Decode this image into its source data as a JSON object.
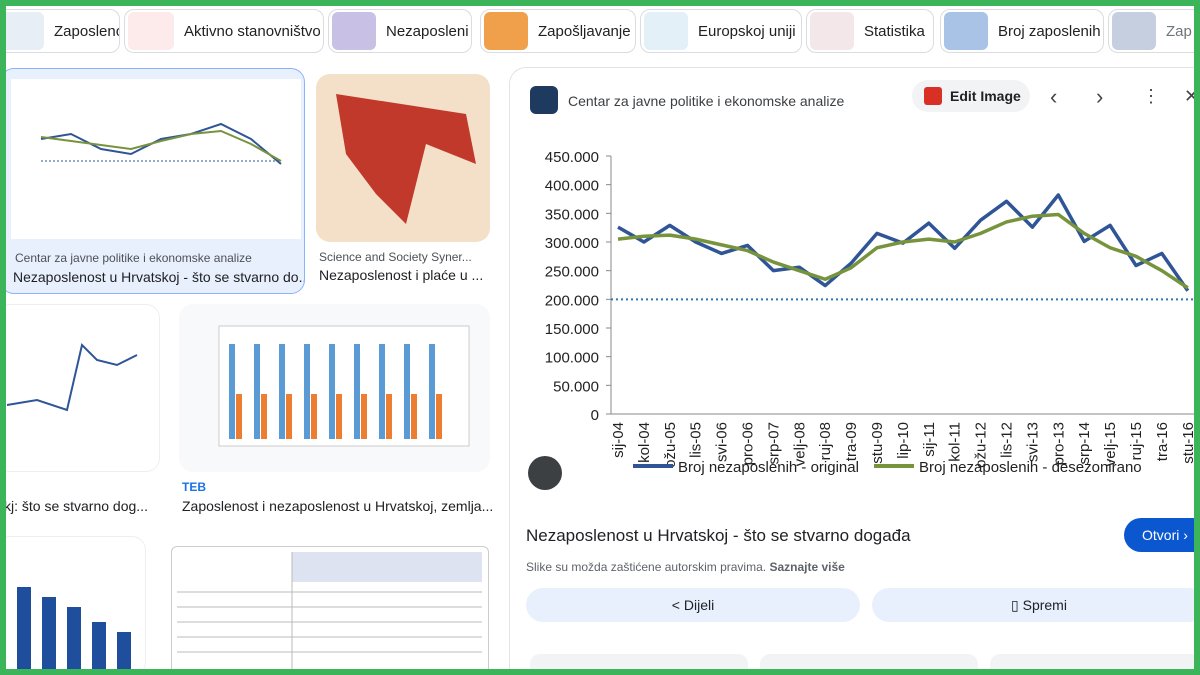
{
  "chips": [
    "Zaposlenost",
    "Aktivno stanovništvo",
    "Nezaposleni",
    "Zapošljavanje",
    "Europskoj uniji",
    "Statistika",
    "Broj zaposlenih",
    "Zap"
  ],
  "results": [
    {
      "source": "Centar za javne politike i ekonomske analize",
      "title": "Nezaposlenost u Hrvatskoj - što se stvarno do..."
    },
    {
      "source": "Science and Society Syner...",
      "title": "Nezaposlenost i plaće u ..."
    },
    {
      "title": "kj: što se stvarno dog..."
    },
    {
      "source": "TEB",
      "title": "Zaposlenost i nezaposlenost u Hrvatskoj, zemlja..."
    }
  ],
  "preview": {
    "source": "Centar za javne politike i ekonomske analize",
    "edit_button": "Edit Image",
    "title": "Nezaposlenost u Hrvatskoj - što se stvarno događa",
    "open_button": "Otvori",
    "copyright_note": "Slike su možda zaštićene autorskim pravima.",
    "learn_more": "Saznajte više",
    "share_button": "Dijeli",
    "save_button": "Spremi"
  },
  "chart_data": {
    "type": "line",
    "categories": [
      "sij-04",
      "kol-04",
      "ožu-05",
      "lis-05",
      "svi-06",
      "pro-06",
      "srp-07",
      "velj-08",
      "ruj-08",
      "tra-09",
      "stu-09",
      "lip-10",
      "sij-11",
      "kol-11",
      "ožu-12",
      "lis-12",
      "svi-13",
      "pro-13",
      "srp-14",
      "velj-15",
      "ruj-15",
      "tra-16",
      "stu-16"
    ],
    "series": [
      {
        "name": "Broj nezaposlenih - original",
        "color": "#2f5597",
        "values": [
          326000,
          300000,
          329000,
          300000,
          280000,
          294000,
          250000,
          256000,
          224000,
          263000,
          315000,
          298000,
          333000,
          289000,
          338000,
          371000,
          326000,
          382000,
          301000,
          329000,
          259000,
          280000,
          215000
        ]
      },
      {
        "name": "Broj nezaposlenih - desezonirano",
        "color": "#77933c",
        "values": [
          305000,
          310000,
          312000,
          305000,
          295000,
          285000,
          265000,
          250000,
          235000,
          255000,
          290000,
          300000,
          305000,
          300000,
          315000,
          335000,
          345000,
          348000,
          315000,
          290000,
          275000,
          250000,
          220000
        ]
      }
    ],
    "reference_line": 200000,
    "ylim": [
      0,
      450000
    ],
    "yticks": [
      0,
      {
        "value": 50000,
        "label": "50.000"
      },
      {
        "value": 100000,
        "label": "100.000"
      },
      {
        "value": 150000,
        "label": "150.000"
      },
      {
        "value": 200000,
        "label": "200.000"
      },
      {
        "value": 250000,
        "label": "250.000"
      },
      {
        "value": 300000,
        "label": "300.000"
      },
      {
        "value": 350000,
        "label": "350.000"
      },
      {
        "value": 400000,
        "label": "400.000"
      },
      {
        "value": 450000,
        "label": "450.000"
      }
    ]
  }
}
